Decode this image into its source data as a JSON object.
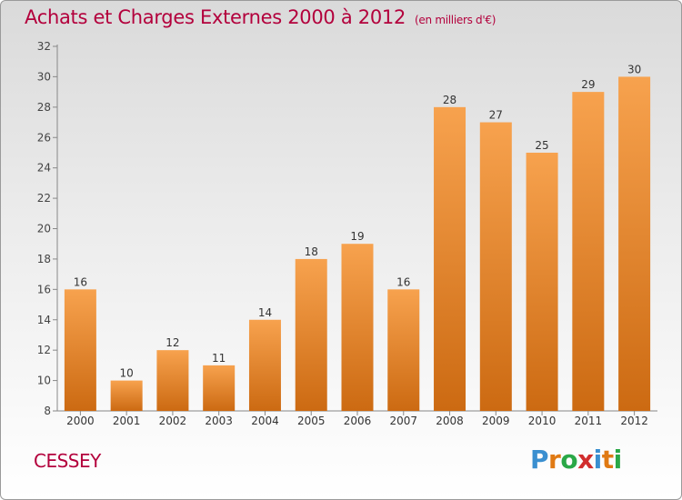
{
  "chart_data": {
    "type": "bar",
    "title": "Achats et Charges Externes 2000 à 2012",
    "unit": "(en milliers d'€)",
    "categories": [
      "2000",
      "2001",
      "2002",
      "2003",
      "2004",
      "2005",
      "2006",
      "2007",
      "2008",
      "2009",
      "2010",
      "2011",
      "2012"
    ],
    "values": [
      16,
      10,
      12,
      11,
      14,
      18,
      19,
      16,
      28,
      27,
      25,
      29,
      30
    ],
    "xlabel": "",
    "ylabel": "",
    "ylim": [
      8,
      32
    ],
    "yticks": [
      8,
      10,
      12,
      14,
      16,
      18,
      20,
      22,
      24,
      26,
      28,
      30,
      32
    ],
    "grid": false,
    "bar_color_top": "#f7a24e",
    "bar_color_bottom": "#cc6a12"
  },
  "commune": "CESSEY",
  "logo": {
    "text": "Proxiti",
    "letters": [
      {
        "ch": "P",
        "color": "#3a8fd0"
      },
      {
        "ch": "r",
        "color": "#e07a14"
      },
      {
        "ch": "o",
        "color": "#2aa847"
      },
      {
        "ch": "x",
        "color": "#d12d2d"
      },
      {
        "ch": "i",
        "color": "#3a8fd0"
      },
      {
        "ch": "t",
        "color": "#e07a14"
      },
      {
        "ch": "i",
        "color": "#2aa847"
      }
    ]
  }
}
